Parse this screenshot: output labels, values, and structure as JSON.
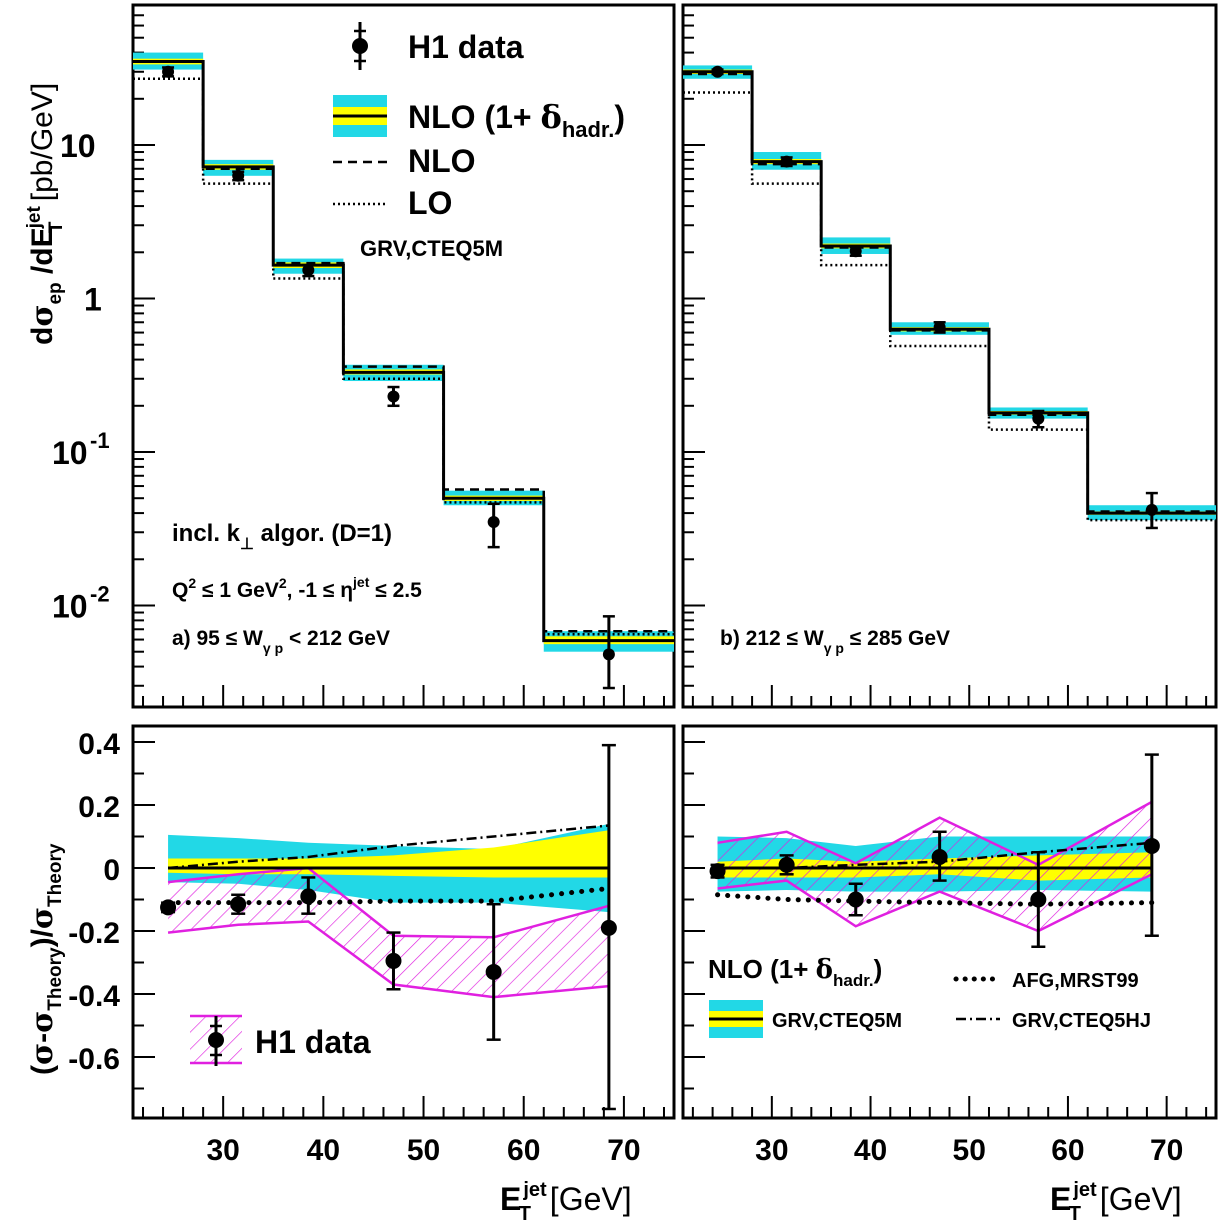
{
  "labels": {
    "y_top_pre": "d",
    "y_top_sigma": "σ",
    "y_top_ep": "ep",
    "y_top_mid": " /dE",
    "y_top_T": "T",
    "y_top_jet": "jet",
    "y_top_unit": " [pb/GeV]",
    "y_bot_open": "(",
    "y_bot_sigma1": "σ",
    "y_bot_dash": "-",
    "y_bot_sigma2": "σ",
    "y_bot_theory1": "Theory",
    "y_bot_slash": ")/",
    "y_bot_sigma3": "σ",
    "y_bot_theory2": "Theory",
    "x_E": "E",
    "x_T": "T",
    "x_jet": "jet",
    "x_unit": " [GeV]",
    "legend_h1": "H1 data",
    "legend_nlo_hadr_pre": "NLO (1+ ",
    "legend_delta": "δ",
    "legend_hadr": "hadr.",
    "legend_close": ")",
    "legend_nlo": "NLO",
    "legend_lo": "LO",
    "legend_pdf": "GRV,CTEQ5M",
    "algo_pre": "incl. k",
    "algo_perp": "⊥",
    "algo_post": " algor. (D=1)",
    "cuts_q": "Q",
    "cuts_2a": "2",
    "cuts_mid": " ≤ 1 GeV",
    "cuts_2b": "2",
    "cuts_eta": ", -1 ≤ η",
    "cuts_jet": "jet",
    "cuts_end": " ≤ 2.5",
    "panel_a_pre": "a) 95 ≤ W",
    "panel_a_sub": "γ p",
    "panel_a_post": " < 212 GeV",
    "panel_b_pre": "b) 212 ≤ W",
    "panel_b_sub": "γ p",
    "panel_b_post": " ≤ 285 GeV",
    "br_nlo_pre": "NLO (1+ ",
    "br_delta": "δ",
    "br_hadr": "hadr.",
    "br_close": ")",
    "br_afg": "AFG,MRST99",
    "br_grv": "GRV,CTEQ5M",
    "br_grvhj": "GRV,CTEQ5HJ",
    "bl_h1": "H1 data"
  },
  "colors": {
    "scale_band": "#22d8e6",
    "hadr_band": "#ffff00",
    "h1_systematic": "#e020e0",
    "line": "#000000"
  },
  "chart_data": [
    {
      "id": "a_cross_section",
      "type": "line",
      "scale": "log",
      "xlim": [
        21,
        75
      ],
      "ylim": [
        0.002,
        60
      ],
      "yticks": [
        {
          "value": 10,
          "label": "10"
        },
        {
          "value": 1,
          "label": "1"
        },
        {
          "value": 0.1,
          "label": "10",
          "exp": "-1"
        },
        {
          "value": 0.01,
          "label": "10",
          "exp": "-2"
        }
      ],
      "bins": [
        21,
        28,
        35,
        42,
        52,
        62,
        75
      ],
      "theory_start": 21,
      "nlo_hadr": [
        35,
        7.2,
        1.65,
        0.33,
        0.05,
        0.0059
      ],
      "scale_band": [
        [
          31,
          40
        ],
        [
          6.3,
          8.0
        ],
        [
          1.45,
          1.82
        ],
        [
          0.29,
          0.37
        ],
        [
          0.045,
          0.056
        ],
        [
          0.005,
          0.0068
        ]
      ],
      "hadr_band": [
        [
          33.5,
          36.5
        ],
        [
          6.9,
          7.5
        ],
        [
          1.58,
          1.72
        ],
        [
          0.32,
          0.345
        ],
        [
          0.048,
          0.052
        ],
        [
          0.0056,
          0.0063
        ]
      ],
      "nlo": [
        35,
        7.0,
        1.7,
        0.36,
        0.057,
        0.0068
      ],
      "lo": [
        27,
        5.6,
        1.35,
        0.3,
        0.047,
        0.0065
      ],
      "data": [
        {
          "x": 24.5,
          "y": 30,
          "lo": 28,
          "hi": 32,
          "slo": 28,
          "shi": 32
        },
        {
          "x": 31.5,
          "y": 6.3,
          "lo": 5.9,
          "hi": 6.7,
          "slo": 5.9,
          "shi": 6.7
        },
        {
          "x": 38.5,
          "y": 1.53,
          "lo": 1.4,
          "hi": 1.65,
          "slo": 1.4,
          "shi": 1.65
        },
        {
          "x": 47,
          "y": 0.23,
          "lo": 0.2,
          "hi": 0.265,
          "slo": 0.21,
          "shi": 0.25
        },
        {
          "x": 57,
          "y": 0.035,
          "lo": 0.024,
          "hi": 0.046,
          "slo": 0.027,
          "shi": 0.042
        },
        {
          "x": 68.5,
          "y": 0.0048,
          "lo": 0.0029,
          "hi": 0.0085,
          "slo": 0.0038,
          "shi": 0.006
        }
      ]
    },
    {
      "id": "b_cross_section",
      "type": "line",
      "scale": "log",
      "xlim": [
        21,
        75
      ],
      "ylim": [
        0.002,
        60
      ],
      "yticks": [],
      "bins": [
        21,
        28,
        35,
        42,
        52,
        62,
        75
      ],
      "theory_start": 21,
      "nlo_hadr": [
        30,
        7.8,
        2.2,
        0.63,
        0.18,
        0.04
      ],
      "scale_band": [
        [
          27,
          33
        ],
        [
          6.9,
          9.0
        ],
        [
          1.95,
          2.5
        ],
        [
          0.58,
          0.7
        ],
        [
          0.165,
          0.195
        ],
        [
          0.036,
          0.045
        ]
      ],
      "hadr_band": [
        [
          29,
          31
        ],
        [
          7.5,
          8.1
        ],
        [
          2.12,
          2.28
        ],
        [
          0.61,
          0.65
        ],
        [
          0.175,
          0.185
        ],
        [
          0.039,
          0.041
        ]
      ],
      "nlo": [
        29,
        7.5,
        2.15,
        0.62,
        0.175,
        0.041
      ],
      "lo": [
        22,
        5.6,
        1.65,
        0.49,
        0.14,
        0.036
      ],
      "data": [
        {
          "x": 24.5,
          "y": 30,
          "lo": 29,
          "hi": 31,
          "slo": 29,
          "shi": 31
        },
        {
          "x": 31.5,
          "y": 7.8,
          "lo": 7.3,
          "hi": 8.3,
          "slo": 7.3,
          "shi": 8.3
        },
        {
          "x": 38.5,
          "y": 2.03,
          "lo": 1.9,
          "hi": 2.16,
          "slo": 1.9,
          "shi": 2.16
        },
        {
          "x": 47,
          "y": 0.65,
          "lo": 0.6,
          "hi": 0.7,
          "slo": 0.61,
          "shi": 0.69
        },
        {
          "x": 57,
          "y": 0.165,
          "lo": 0.145,
          "hi": 0.185,
          "slo": 0.15,
          "shi": 0.18
        },
        {
          "x": 68.5,
          "y": 0.042,
          "lo": 0.032,
          "hi": 0.054,
          "slo": 0.035,
          "shi": 0.05
        }
      ]
    },
    {
      "id": "a_ratio",
      "type": "line",
      "xlim": [
        21,
        75
      ],
      "ylim": [
        -0.78,
        0.44
      ],
      "yticks": [
        {
          "value": 0.4,
          "label": "0.4"
        },
        {
          "value": 0.2,
          "label": "0.2"
        },
        {
          "value": 0,
          "label": "0"
        },
        {
          "value": -0.2,
          "label": "-0.2"
        },
        {
          "value": -0.4,
          "label": "-0.4"
        },
        {
          "value": -0.6,
          "label": "-0.6"
        }
      ],
      "xticks": [
        {
          "value": 30,
          "label": "30"
        },
        {
          "value": 40,
          "label": "40"
        },
        {
          "value": 50,
          "label": "50"
        },
        {
          "value": 60,
          "label": "60"
        },
        {
          "value": 70,
          "label": "70"
        }
      ],
      "band_x": [
        24.5,
        31.5,
        38.5,
        47,
        57,
        68.5
      ],
      "scale_up": [
        0.105,
        0.095,
        0.08,
        0.07,
        0.06,
        0.14
      ],
      "scale_dn": [
        -0.045,
        -0.05,
        -0.07,
        -0.11,
        -0.11,
        -0.14
      ],
      "hadr_up": [
        0.03,
        0.03,
        0.03,
        0.04,
        0.065,
        0.12
      ],
      "hadr_dn": [
        -0.015,
        -0.02,
        -0.02,
        -0.025,
        -0.03,
        -0.03
      ],
      "theory_x": [
        24.5,
        68.5
      ],
      "afg": [
        -0.11,
        -0.11,
        -0.11,
        -0.105,
        -0.105,
        -0.065
      ],
      "cteq5hj": [
        0.0,
        0.02,
        0.035,
        0.07,
        0.1,
        0.135
      ],
      "data": [
        {
          "x": 24.5,
          "y": -0.125,
          "lo": -0.14,
          "hi": -0.11
        },
        {
          "x": 31.5,
          "y": -0.115,
          "lo": -0.145,
          "hi": -0.085
        },
        {
          "x": 38.5,
          "y": -0.09,
          "lo": -0.145,
          "hi": -0.03
        },
        {
          "x": 47,
          "y": -0.295,
          "lo": -0.385,
          "hi": -0.205
        },
        {
          "x": 57,
          "y": -0.33,
          "lo": -0.545,
          "hi": -0.115
        },
        {
          "x": 68.5,
          "y": -0.19,
          "lo": -0.765,
          "hi": 0.39
        }
      ],
      "syst_up": [
        -0.045,
        -0.02,
        0.0,
        -0.215,
        -0.22,
        -0.12
      ],
      "syst_dn": [
        -0.205,
        -0.18,
        -0.17,
        -0.37,
        -0.41,
        -0.375
      ]
    },
    {
      "id": "b_ratio",
      "type": "line",
      "xlim": [
        21,
        75
      ],
      "ylim": [
        -0.78,
        0.44
      ],
      "yticks": [],
      "xticks": [
        {
          "value": 30,
          "label": "30"
        },
        {
          "value": 40,
          "label": "40"
        },
        {
          "value": 50,
          "label": "50"
        },
        {
          "value": 60,
          "label": "60"
        },
        {
          "value": 70,
          "label": "70"
        }
      ],
      "band_x": [
        24.5,
        31.5,
        38.5,
        47,
        57,
        68.5
      ],
      "scale_up": [
        0.1,
        0.095,
        0.07,
        0.1,
        0.1,
        0.1
      ],
      "scale_dn": [
        -0.075,
        -0.07,
        -0.075,
        -0.075,
        -0.07,
        -0.075
      ],
      "hadr_up": [
        0.02,
        0.03,
        0.02,
        0.03,
        0.04,
        0.05
      ],
      "hadr_dn": [
        -0.03,
        -0.03,
        -0.03,
        -0.02,
        -0.04,
        -0.03
      ],
      "theory_x": [
        24.5,
        68.5
      ],
      "afg": [
        -0.085,
        -0.1,
        -0.105,
        -0.11,
        -0.115,
        -0.11
      ],
      "cteq5hj": [
        0.0,
        0.0,
        0.01,
        0.02,
        0.05,
        0.08
      ],
      "data": [
        {
          "x": 24.5,
          "y": -0.01,
          "lo": -0.03,
          "hi": 0.01
        },
        {
          "x": 31.5,
          "y": 0.01,
          "lo": -0.02,
          "hi": 0.04
        },
        {
          "x": 38.5,
          "y": -0.1,
          "lo": -0.15,
          "hi": -0.05
        },
        {
          "x": 47,
          "y": 0.035,
          "lo": -0.04,
          "hi": 0.115
        },
        {
          "x": 57,
          "y": -0.1,
          "lo": -0.25,
          "hi": 0.05
        },
        {
          "x": 68.5,
          "y": 0.07,
          "lo": -0.215,
          "hi": 0.36
        }
      ],
      "syst_up": [
        0.08,
        0.115,
        0.015,
        0.16,
        0.01,
        0.21
      ],
      "syst_dn": [
        -0.065,
        -0.04,
        -0.185,
        -0.075,
        -0.2,
        -0.02
      ]
    }
  ]
}
